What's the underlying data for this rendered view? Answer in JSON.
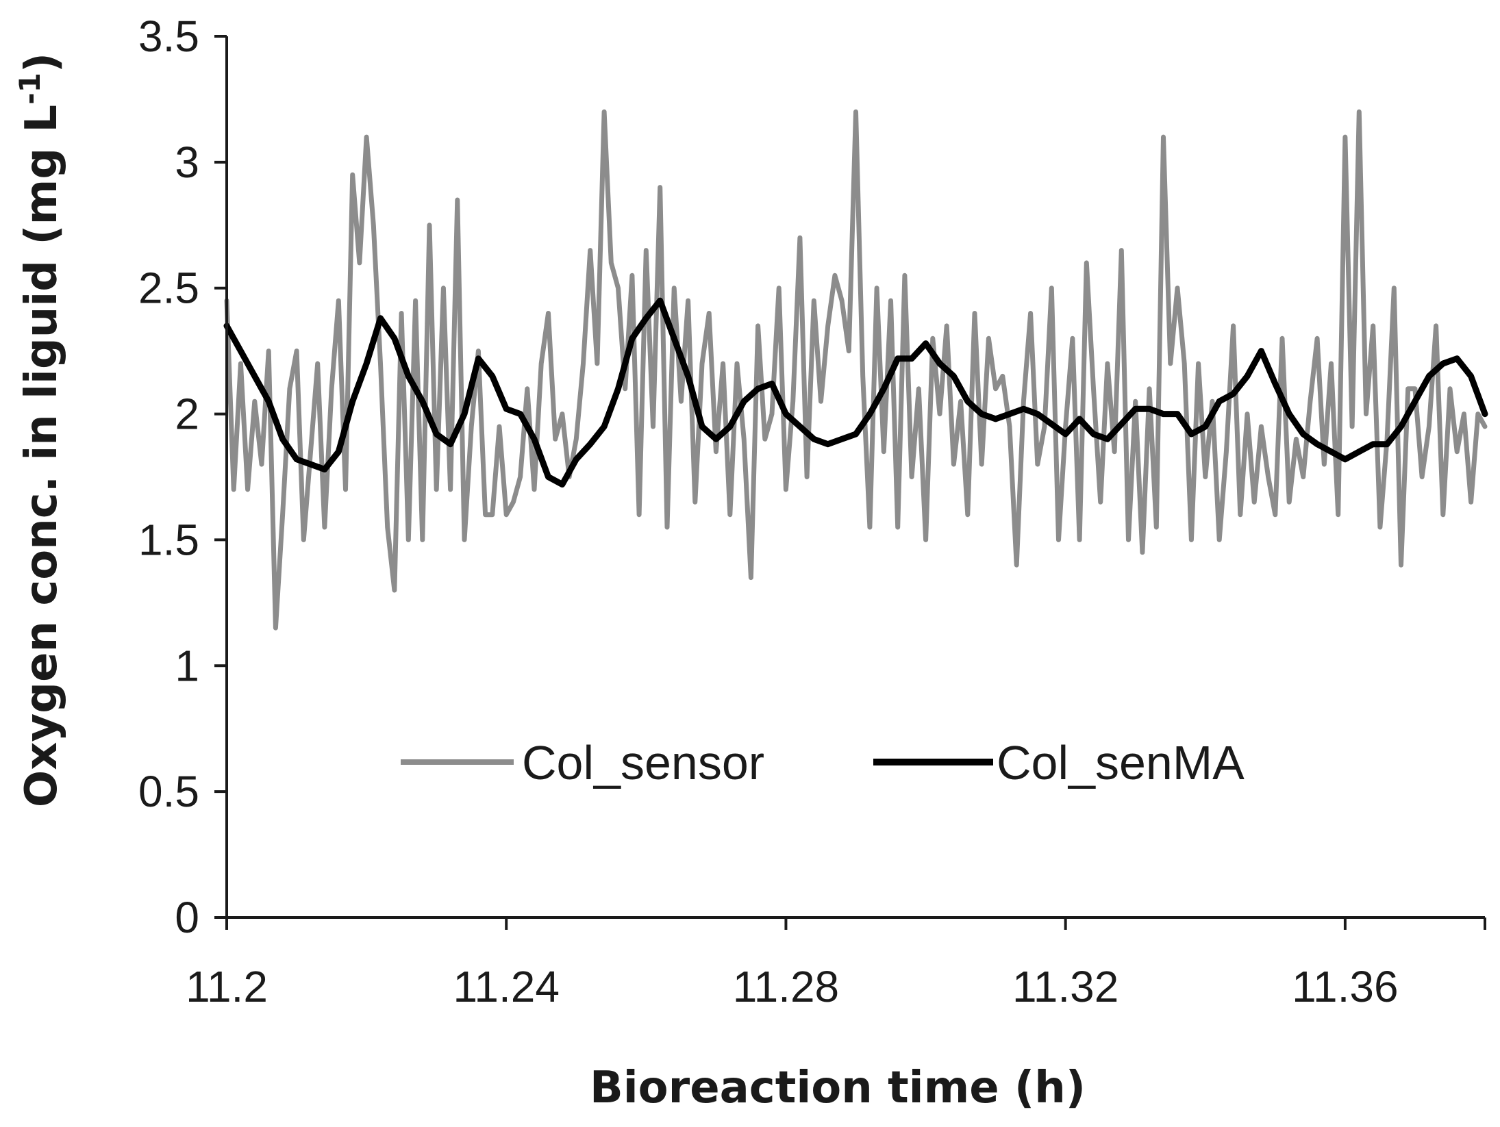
{
  "chart_data": {
    "type": "line",
    "title": "",
    "xlabel": "Bioreaction time (h)",
    "ylabel_main": "Oxygen conc. in liguid (mg L",
    "ylabel_superscript": "-1",
    "ylabel_close": ")",
    "xlim": [
      11.2,
      11.38
    ],
    "ylim": [
      0,
      3.5
    ],
    "xticks": [
      11.2,
      11.24,
      11.28,
      11.32,
      11.36
    ],
    "xtick_labels": [
      "11.2",
      "11.24",
      "11.28",
      "11.32",
      "11.36"
    ],
    "yticks": [
      0,
      0.5,
      1,
      1.5,
      2,
      2.5,
      3,
      3.5
    ],
    "ytick_labels": [
      "0",
      "0.5",
      "1",
      "1.5",
      "2",
      "2.5",
      "3",
      "3.5"
    ],
    "grid": false,
    "legend_position": "center",
    "series": [
      {
        "name": "Col_sensor",
        "color": "#8c8c8c",
        "x": [
          11.2,
          11.201,
          11.202,
          11.203,
          11.204,
          11.205,
          11.206,
          11.207,
          11.208,
          11.209,
          11.21,
          11.211,
          11.212,
          11.213,
          11.214,
          11.215,
          11.216,
          11.217,
          11.218,
          11.219,
          11.22,
          11.221,
          11.222,
          11.223,
          11.224,
          11.225,
          11.226,
          11.227,
          11.228,
          11.229,
          11.23,
          11.231,
          11.232,
          11.233,
          11.234,
          11.235,
          11.236,
          11.237,
          11.238,
          11.239,
          11.24,
          11.241,
          11.242,
          11.243,
          11.244,
          11.245,
          11.246,
          11.247,
          11.248,
          11.249,
          11.25,
          11.251,
          11.252,
          11.253,
          11.254,
          11.255,
          11.256,
          11.257,
          11.258,
          11.259,
          11.26,
          11.261,
          11.262,
          11.263,
          11.264,
          11.265,
          11.266,
          11.267,
          11.268,
          11.269,
          11.27,
          11.271,
          11.272,
          11.273,
          11.274,
          11.275,
          11.276,
          11.277,
          11.278,
          11.279,
          11.28,
          11.281,
          11.282,
          11.283,
          11.284,
          11.285,
          11.286,
          11.287,
          11.288,
          11.289,
          11.29,
          11.291,
          11.292,
          11.293,
          11.294,
          11.295,
          11.296,
          11.297,
          11.298,
          11.299,
          11.3,
          11.301,
          11.302,
          11.303,
          11.304,
          11.305,
          11.306,
          11.307,
          11.308,
          11.309,
          11.31,
          11.311,
          11.312,
          11.313,
          11.314,
          11.315,
          11.316,
          11.317,
          11.318,
          11.319,
          11.32,
          11.321,
          11.322,
          11.323,
          11.324,
          11.325,
          11.326,
          11.327,
          11.328,
          11.329,
          11.33,
          11.331,
          11.332,
          11.333,
          11.334,
          11.335,
          11.336,
          11.337,
          11.338,
          11.339,
          11.34,
          11.341,
          11.342,
          11.343,
          11.344,
          11.345,
          11.346,
          11.347,
          11.348,
          11.349,
          11.35,
          11.351,
          11.352,
          11.353,
          11.354,
          11.355,
          11.356,
          11.357,
          11.358,
          11.359,
          11.36,
          11.361,
          11.362,
          11.363,
          11.364,
          11.365,
          11.366,
          11.367,
          11.368,
          11.369,
          11.37,
          11.371,
          11.372,
          11.373,
          11.374,
          11.375,
          11.376,
          11.377,
          11.378,
          11.379,
          11.38
        ],
        "y": [
          2.45,
          1.7,
          2.2,
          1.7,
          2.05,
          1.8,
          2.25,
          1.15,
          1.6,
          2.1,
          2.25,
          1.5,
          1.85,
          2.2,
          1.55,
          2.1,
          2.45,
          1.7,
          2.95,
          2.6,
          3.1,
          2.75,
          2.2,
          1.55,
          1.3,
          2.4,
          1.5,
          2.45,
          1.5,
          2.75,
          1.7,
          2.5,
          1.7,
          2.85,
          1.5,
          1.95,
          2.25,
          1.6,
          1.6,
          1.95,
          1.6,
          1.65,
          1.75,
          2.1,
          1.7,
          2.2,
          2.4,
          1.9,
          2.0,
          1.75,
          1.9,
          2.2,
          2.65,
          2.2,
          3.2,
          2.6,
          2.5,
          2.1,
          2.55,
          1.6,
          2.65,
          1.95,
          2.9,
          1.55,
          2.5,
          2.05,
          2.45,
          1.65,
          2.2,
          2.4,
          1.85,
          2.2,
          1.6,
          2.2,
          1.9,
          1.35,
          2.35,
          1.9,
          2.0,
          2.5,
          1.7,
          2.05,
          2.7,
          1.75,
          2.45,
          2.05,
          2.35,
          2.55,
          2.45,
          2.25,
          3.2,
          2.15,
          1.55,
          2.5,
          1.85,
          2.45,
          1.55,
          2.55,
          1.75,
          2.1,
          1.5,
          2.3,
          2.0,
          2.35,
          1.8,
          2.05,
          1.6,
          2.4,
          1.8,
          2.3,
          2.1,
          2.15,
          1.95,
          1.4,
          2.05,
          2.4,
          1.8,
          1.95,
          2.5,
          1.5,
          1.95,
          2.3,
          1.5,
          2.6,
          2.1,
          1.65,
          2.2,
          1.85,
          2.65,
          1.5,
          2.05,
          1.45,
          2.1,
          1.55,
          3.1,
          2.2,
          2.5,
          2.2,
          1.5,
          2.2,
          1.75,
          2.05,
          1.5,
          1.85,
          2.35,
          1.6,
          2.0,
          1.65,
          1.95,
          1.75,
          1.6,
          2.3,
          1.65,
          1.9,
          1.75,
          2.05,
          2.3,
          1.8,
          2.2,
          1.6,
          3.1,
          1.95,
          3.2,
          2.0,
          2.35,
          1.55,
          1.9,
          2.5,
          1.4,
          2.1,
          2.1,
          1.75,
          1.95,
          2.35,
          1.6,
          2.1,
          1.85,
          2.0,
          1.65,
          2.0,
          1.95
        ]
      },
      {
        "name": "Col_senMA",
        "color": "#000000",
        "x": [
          11.2,
          11.202,
          11.204,
          11.206,
          11.208,
          11.21,
          11.212,
          11.214,
          11.216,
          11.218,
          11.22,
          11.222,
          11.224,
          11.226,
          11.228,
          11.23,
          11.232,
          11.234,
          11.236,
          11.238,
          11.24,
          11.242,
          11.244,
          11.246,
          11.248,
          11.25,
          11.252,
          11.254,
          11.256,
          11.258,
          11.26,
          11.262,
          11.264,
          11.266,
          11.268,
          11.27,
          11.272,
          11.274,
          11.276,
          11.278,
          11.28,
          11.282,
          11.284,
          11.286,
          11.288,
          11.29,
          11.292,
          11.294,
          11.296,
          11.298,
          11.3,
          11.302,
          11.304,
          11.306,
          11.308,
          11.31,
          11.312,
          11.314,
          11.316,
          11.318,
          11.32,
          11.322,
          11.324,
          11.326,
          11.328,
          11.33,
          11.332,
          11.334,
          11.336,
          11.338,
          11.34,
          11.342,
          11.344,
          11.346,
          11.348,
          11.35,
          11.352,
          11.354,
          11.356,
          11.358,
          11.36,
          11.362,
          11.364,
          11.366,
          11.368,
          11.37,
          11.372,
          11.374,
          11.376,
          11.378,
          11.38
        ],
        "y": [
          2.35,
          2.25,
          2.15,
          2.05,
          1.9,
          1.82,
          1.8,
          1.78,
          1.85,
          2.05,
          2.2,
          2.38,
          2.3,
          2.15,
          2.05,
          1.92,
          1.88,
          2.0,
          2.22,
          2.15,
          2.02,
          2.0,
          1.9,
          1.75,
          1.72,
          1.82,
          1.88,
          1.95,
          2.1,
          2.3,
          2.38,
          2.45,
          2.3,
          2.15,
          1.95,
          1.9,
          1.95,
          2.05,
          2.1,
          2.12,
          2.0,
          1.95,
          1.9,
          1.88,
          1.9,
          1.92,
          2.0,
          2.1,
          2.22,
          2.22,
          2.28,
          2.2,
          2.15,
          2.05,
          2.0,
          1.98,
          2.0,
          2.02,
          2.0,
          1.96,
          1.92,
          1.98,
          1.92,
          1.9,
          1.96,
          2.02,
          2.02,
          2.0,
          2.0,
          1.92,
          1.95,
          2.05,
          2.08,
          2.15,
          2.25,
          2.12,
          2.0,
          1.92,
          1.88,
          1.85,
          1.82,
          1.85,
          1.88,
          1.88,
          1.95,
          2.05,
          2.15,
          2.2,
          2.22,
          2.15,
          2.0
        ]
      }
    ]
  }
}
